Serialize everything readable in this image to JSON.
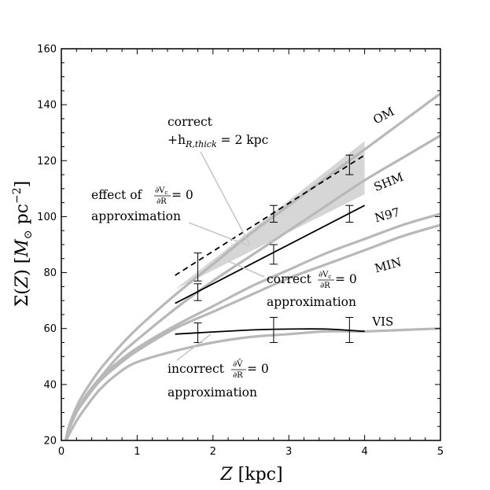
{
  "chart_data": {
    "type": "line",
    "xlabel": "Z [kpc]",
    "ylabel": "Σ(Z) [M⊙ pc⁻²]",
    "xlim": [
      0,
      5
    ],
    "ylim": [
      20,
      160
    ],
    "x_ticks": [
      0,
      1,
      2,
      3,
      4,
      5
    ],
    "y_ticks": [
      20,
      40,
      60,
      80,
      100,
      120,
      140,
      160
    ],
    "models": [
      {
        "name": "OM",
        "x": [
          0.05,
          0.1,
          0.2,
          0.3,
          0.5,
          0.75,
          1,
          1.5,
          2,
          2.5,
          3,
          3.5,
          4,
          4.5,
          5
        ],
        "values": [
          19,
          25,
          32,
          37,
          45,
          53,
          60,
          72,
          83,
          94,
          104,
          114,
          124,
          134,
          144
        ]
      },
      {
        "name": "SHM",
        "x": [
          0.05,
          0.1,
          0.2,
          0.3,
          0.5,
          0.75,
          1,
          1.5,
          2,
          2.5,
          3,
          3.5,
          4,
          4.5,
          5
        ],
        "values": [
          19,
          24,
          30,
          35,
          42,
          50,
          56,
          67,
          77,
          86,
          95,
          104,
          113,
          121,
          129
        ]
      },
      {
        "name": "N97",
        "x": [
          0.05,
          0.1,
          0.2,
          0.3,
          0.5,
          0.75,
          1,
          1.5,
          2,
          2.5,
          3,
          3.5,
          4,
          4.5,
          5
        ],
        "values": [
          19,
          24,
          30,
          35,
          42,
          48,
          53,
          61,
          68,
          75,
          81,
          87,
          92,
          97,
          101
        ]
      },
      {
        "name": "MIN",
        "x": [
          0.05,
          0.1,
          0.2,
          0.3,
          0.5,
          0.75,
          1,
          1.5,
          2,
          2.5,
          3,
          3.5,
          4,
          4.5,
          5
        ],
        "values": [
          19,
          24,
          30,
          34,
          41,
          47,
          52,
          60,
          66,
          72,
          78,
          83,
          88,
          93,
          97
        ]
      },
      {
        "name": "VIS",
        "x": [
          0.05,
          0.1,
          0.2,
          0.3,
          0.5,
          0.75,
          1,
          1.5,
          2,
          2.5,
          3,
          3.5,
          4,
          4.5,
          5
        ],
        "values": [
          19,
          22,
          27,
          31,
          38,
          44,
          48,
          52,
          55,
          57,
          58,
          59,
          59,
          59.5,
          60
        ]
      }
    ],
    "model_label_values": [
      {
        "name": "OM",
        "x": 4.15,
        "y": 133
      },
      {
        "name": "SHM",
        "x": 4.15,
        "y": 109
      },
      {
        "name": "N97",
        "x": 4.15,
        "y": 98
      },
      {
        "name": "MIN",
        "x": 4.15,
        "y": 80
      },
      {
        "name": "VIS",
        "x": 4.1,
        "y": 61
      }
    ],
    "shaded_region": {
      "x": [
        1.5,
        4.0,
        4.0,
        1.5
      ],
      "y": [
        74,
        127,
        108,
        74
      ]
    },
    "fits": [
      {
        "name": "effect of dVc/dR = 0 approximation",
        "style": "dashed",
        "x": [
          1.5,
          4.0
        ],
        "y": [
          79,
          122
        ]
      },
      {
        "name": "correct dVc/dR = 0 approximation",
        "style": "solid",
        "x": [
          1.5,
          4.0
        ],
        "y": [
          69,
          104
        ]
      },
      {
        "name": "incorrect dVbar/dR = 0 approximation",
        "style": "solid",
        "x": [
          1.5,
          2.5,
          3.0,
          3.5,
          4.0
        ],
        "y": [
          58,
          59.5,
          59.8,
          59.8,
          59
        ]
      }
    ],
    "error_bars": [
      {
        "x": 1.8,
        "y": 84,
        "lo": 77,
        "hi": 87
      },
      {
        "x": 1.8,
        "y": 73,
        "lo": 70,
        "hi": 76
      },
      {
        "x": 1.8,
        "y": 58,
        "lo": 55,
        "hi": 62
      },
      {
        "x": 2.8,
        "y": 101,
        "lo": 98,
        "hi": 104
      },
      {
        "x": 2.8,
        "y": 87,
        "lo": 83,
        "hi": 90
      },
      {
        "x": 2.8,
        "y": 59,
        "lo": 55,
        "hi": 64
      },
      {
        "x": 3.8,
        "y": 118,
        "lo": 115,
        "hi": 122
      },
      {
        "x": 3.8,
        "y": 101,
        "lo": 98,
        "hi": 104
      },
      {
        "x": 3.8,
        "y": 59,
        "lo": 55,
        "hi": 64
      }
    ],
    "annotations": {
      "thick_line1": "correct",
      "thick_line2": "+h",
      "thick_sub": "R,thick",
      "thick_rest": " = 2 kpc",
      "effect_pre": "effect of ",
      "effect_post": " = 0",
      "effect_line2": "approximation",
      "correct_pre": "correct ",
      "correct_post": " = 0",
      "correct_line2": "approximation",
      "incorrect_pre": "incorrect ",
      "incorrect_post": " = 0",
      "incorrect_line2": "approximation",
      "frac_num_vc": "∂V",
      "frac_num_vc_sub": "c",
      "frac_num_vbar": "∂V̄",
      "frac_den": "∂R"
    }
  }
}
